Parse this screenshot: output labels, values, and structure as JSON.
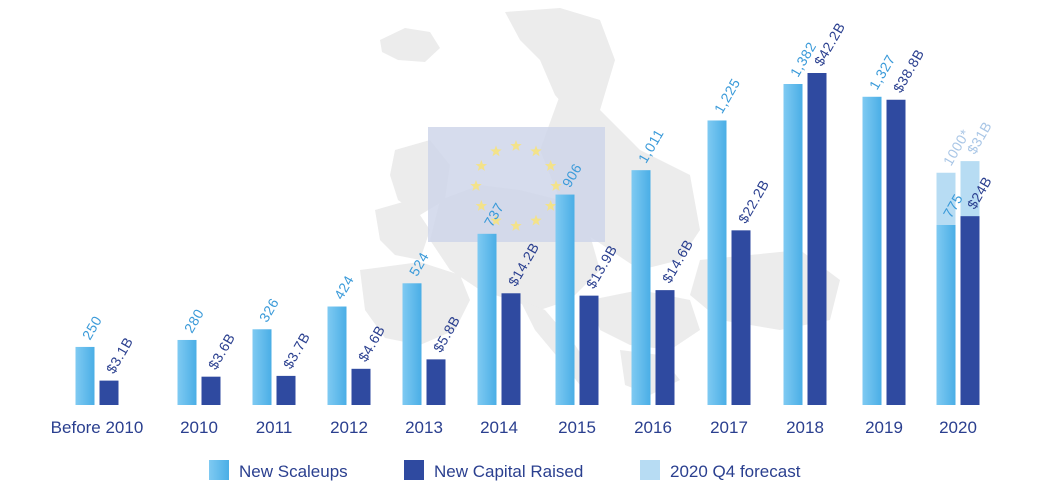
{
  "chart_data": {
    "type": "bar",
    "categories": [
      "Before 2010",
      "2010",
      "2011",
      "2012",
      "2013",
      "2014",
      "2015",
      "2016",
      "2017",
      "2018",
      "2019",
      "2020"
    ],
    "series": [
      {
        "name": "New Scaleups",
        "color": "#4aaee6",
        "values": [
          250,
          280,
          326,
          424,
          524,
          737,
          906,
          1011,
          1225,
          1382,
          1327,
          775
        ],
        "labels": [
          "250",
          "280",
          "326",
          "424",
          "524",
          "737",
          "906",
          "1,011",
          "1,225",
          "1,382",
          "1,327",
          "775"
        ]
      },
      {
        "name": "New Capital Raised",
        "color": "#2f4aa0",
        "values": [
          3.1,
          3.6,
          3.7,
          4.6,
          5.8,
          14.2,
          13.9,
          14.6,
          22.2,
          42.2,
          38.8,
          24
        ],
        "labels": [
          "$3.1B",
          "$3.6B",
          "$3.7B",
          "$4.6B",
          "$5.8B",
          "$14.2B",
          "$13.9B",
          "$14.6B",
          "$22.2B",
          "$42.2B",
          "$38.8B",
          "$24B"
        ]
      },
      {
        "name": "2020 Q4 forecast",
        "color": "#b7dcf3",
        "category": "2020",
        "scaleups_value": 1000,
        "scaleups_label": "1000*",
        "capital_value": 31,
        "capital_label": "$31B"
      }
    ],
    "legend": {
      "position": "bottom"
    },
    "grid": false
  },
  "colors": {
    "axis_text": "#2a3f8f",
    "scaleups_label": "#3a9ad9",
    "capital_label": "#2a3f8f",
    "forecast_label": "#a9c6e6"
  }
}
